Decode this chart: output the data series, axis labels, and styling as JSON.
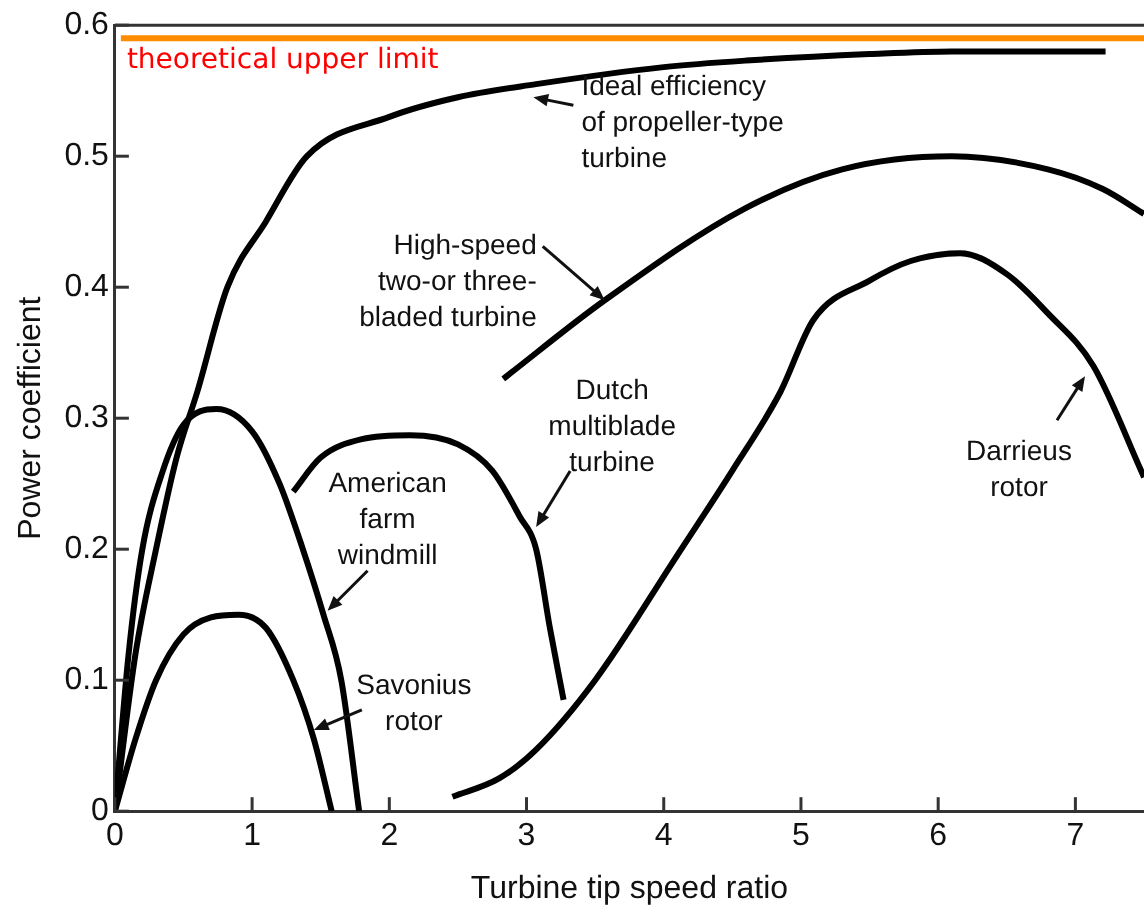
{
  "chart_data": {
    "type": "line",
    "xlabel": "Turbine tip speed ratio",
    "ylabel": "Power coefficient",
    "xlim": [
      0,
      7.5
    ],
    "xticks": [
      0,
      1,
      2,
      3,
      4,
      5,
      6,
      7
    ],
    "ylim": [
      0,
      0.6
    ],
    "yticks": [
      0,
      0.1,
      0.2,
      0.3,
      0.4,
      0.5,
      0.6
    ],
    "grid": false,
    "legend": false,
    "marker": "none",
    "line_style": "solid",
    "series": [
      {
        "color": "#000000",
        "x": [
          0,
          0.15,
          0.3,
          0.45,
          0.6,
          0.82,
          1.1,
          1.4,
          2,
          2.5,
          3.07,
          4,
          4.6,
          5.5,
          6.1,
          7.22
        ],
        "values": [
          0,
          0.12,
          0.2,
          0.27,
          0.32,
          0.4,
          0.45,
          0.5,
          0.53,
          0.545,
          0.555,
          0.568,
          0.573,
          0.578,
          0.58,
          0.58
        ]
      },
      {
        "color": "#000000",
        "x": [
          0,
          0.1,
          0.2,
          0.35,
          0.5,
          0.74,
          1,
          1.2,
          1.37,
          1.52,
          1.65,
          1.78
        ],
        "values": [
          0,
          0.12,
          0.2,
          0.26,
          0.295,
          0.307,
          0.29,
          0.25,
          0.2,
          0.15,
          0.1,
          0
        ]
      },
      {
        "color": "#000000",
        "x": [
          0,
          0.15,
          0.3,
          0.5,
          0.7,
          0.9,
          1.1,
          1.3,
          1.45,
          1.58
        ],
        "values": [
          0,
          0.055,
          0.1,
          0.135,
          0.148,
          0.15,
          0.14,
          0.1,
          0.055,
          0
        ]
      },
      {
        "color": "#000000",
        "x": [
          1.3,
          1.5,
          1.8,
          2.15,
          2.5,
          2.75,
          2.95,
          3.07,
          3.17,
          3.27
        ],
        "values": [
          0.244,
          0.27,
          0.284,
          0.287,
          0.28,
          0.26,
          0.225,
          0.2,
          0.14,
          0.085
        ]
      },
      {
        "color": "#000000",
        "x": [
          2.83,
          3.57,
          4.59,
          5.3,
          6.1,
          6.8,
          7.2,
          7.5
        ],
        "values": [
          0.33,
          0.39,
          0.46,
          0.49,
          0.5,
          0.49,
          0.475,
          0.456
        ]
      },
      {
        "color": "#000000",
        "x": [
          2.46,
          2.8,
          3.07,
          3.5,
          4.09,
          4.5,
          4.85,
          5.09,
          5.5,
          5.8,
          6.16,
          6.5,
          6.8,
          7.13,
          7.5
        ],
        "values": [
          0.011,
          0.025,
          0.047,
          0.1,
          0.194,
          0.26,
          0.32,
          0.375,
          0.405,
          0.42,
          0.426,
          0.41,
          0.38,
          0.34,
          0.255
        ]
      }
    ],
    "ref_lines": [
      {
        "axis": "y",
        "value": 0.59,
        "label": "theoretical upper limit",
        "color": "#ff8c00"
      }
    ],
    "annotations": [
      {
        "text": "Ideal efficiency\nof propeller-type\nturbine",
        "x": 3.05,
        "y": 0.545
      },
      {
        "text": "High-speed\ntwo-or three-\nbladed turbine",
        "x": 3.57,
        "y": 0.39
      },
      {
        "text": "Dutch\nmultiblade\nturbine",
        "x": 3.07,
        "y": 0.217
      },
      {
        "text": "American\nfarm\nwindmill",
        "x": 1.55,
        "y": 0.153
      },
      {
        "text": "Savonius\nrotor",
        "x": 1.45,
        "y": 0.062
      },
      {
        "text": "Darrieus\nrotor",
        "x": 7.07,
        "y": 0.332
      }
    ]
  }
}
